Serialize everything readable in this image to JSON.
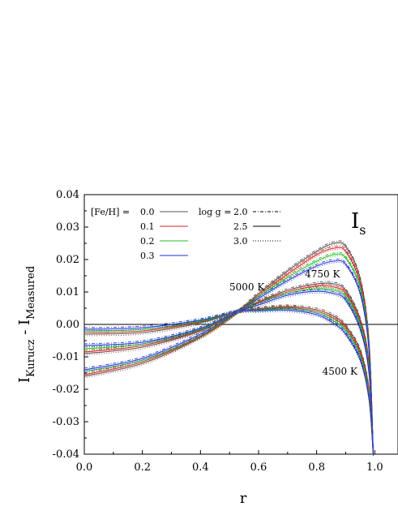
{
  "chart_data": {
    "type": "line",
    "title": "",
    "panel_label": "I",
    "panel_label_sub": "s",
    "xlabel": "r",
    "ylabel_main": "I",
    "ylabel_sub1": "Kurucz",
    "ylabel_mid": " - I",
    "ylabel_sub2": "Measured",
    "xlim": [
      0.0,
      1.08
    ],
    "ylim": [
      -0.04,
      0.04
    ],
    "x_ticks": [
      0.0,
      0.2,
      0.4,
      0.6,
      0.8,
      1.0
    ],
    "x_tick_labels": [
      "0.0",
      "0.2",
      "0.4",
      "0.6",
      "0.8",
      "1.0"
    ],
    "y_ticks": [
      -0.04,
      -0.03,
      -0.02,
      -0.01,
      0.0,
      0.01,
      0.02,
      0.03,
      0.04
    ],
    "y_tick_labels": [
      "-0.04",
      "-0.03",
      "-0.02",
      "-0.01",
      "0.00",
      "0.01",
      "0.02",
      "0.03",
      "0.04"
    ],
    "zero_line": true,
    "legend_placement": "top-left",
    "legend_feh": {
      "heading": "[Fe/H] =",
      "entries": [
        {
          "label": "0.0",
          "color": "#555555"
        },
        {
          "label": "0.1",
          "color": "#e02020"
        },
        {
          "label": "0.2",
          "color": "#20c020"
        },
        {
          "label": "0.3",
          "color": "#2030e0"
        }
      ]
    },
    "legend_logg": {
      "heading": "log g =",
      "entries": [
        {
          "label": "2.0",
          "dash": "4,2,1,2"
        },
        {
          "label": "2.5",
          "dash": ""
        },
        {
          "label": "3.0",
          "dash": "1,2"
        }
      ]
    },
    "annotations": [
      {
        "text": "5000 K",
        "x": 0.56,
        "y": 0.0105
      },
      {
        "text": "4750 K",
        "x": 0.82,
        "y": 0.0145
      },
      {
        "text": "4500 K",
        "x": 0.88,
        "y": -0.0155
      }
    ],
    "bundles": [
      {
        "temperature": "5000 K",
        "series": [
          {
            "x": [
              0.0,
              0.2,
              0.4,
              0.53,
              0.6,
              0.7,
              0.8,
              0.86,
              0.9,
              0.95,
              0.98,
              0.995
            ],
            "y": [
              -0.016,
              -0.012,
              -0.004,
              0.004,
              0.0095,
              0.0165,
              0.0225,
              0.025,
              0.024,
              0.014,
              -0.005,
              -0.04
            ]
          },
          {
            "x": [
              0.0,
              0.2,
              0.4,
              0.53,
              0.6,
              0.7,
              0.8,
              0.86,
              0.9,
              0.95,
              0.98,
              0.995
            ],
            "y": [
              -0.0155,
              -0.0115,
              -0.0038,
              0.004,
              0.009,
              0.0155,
              0.0215,
              0.0235,
              0.0225,
              0.0125,
              -0.006,
              -0.04
            ]
          },
          {
            "x": [
              0.0,
              0.2,
              0.4,
              0.53,
              0.6,
              0.7,
              0.8,
              0.86,
              0.9,
              0.95,
              0.98,
              0.995
            ],
            "y": [
              -0.0145,
              -0.011,
              -0.0035,
              0.004,
              0.0085,
              0.0145,
              0.0195,
              0.0215,
              0.0205,
              0.011,
              -0.007,
              -0.04
            ]
          },
          {
            "x": [
              0.0,
              0.2,
              0.4,
              0.53,
              0.6,
              0.7,
              0.8,
              0.86,
              0.9,
              0.95,
              0.98,
              0.995
            ],
            "y": [
              -0.014,
              -0.0105,
              -0.003,
              0.004,
              0.008,
              0.0135,
              0.018,
              0.0195,
              0.0185,
              0.0095,
              -0.008,
              -0.04
            ]
          }
        ]
      },
      {
        "temperature": "4750 K",
        "series": [
          {
            "x": [
              0.0,
              0.2,
              0.4,
              0.53,
              0.6,
              0.7,
              0.8,
              0.86,
              0.9,
              0.95,
              0.98,
              0.995
            ],
            "y": [
              -0.009,
              -0.007,
              -0.002,
              0.004,
              0.007,
              0.0105,
              0.0125,
              0.0125,
              0.0105,
              0.0015,
              -0.012,
              -0.04
            ]
          },
          {
            "x": [
              0.0,
              0.2,
              0.4,
              0.53,
              0.6,
              0.7,
              0.8,
              0.86,
              0.9,
              0.95,
              0.98,
              0.995
            ],
            "y": [
              -0.0085,
              -0.0065,
              -0.0018,
              0.004,
              0.0068,
              0.01,
              0.0118,
              0.0115,
              0.0095,
              0.0005,
              -0.013,
              -0.04
            ]
          },
          {
            "x": [
              0.0,
              0.2,
              0.4,
              0.53,
              0.6,
              0.7,
              0.8,
              0.86,
              0.9,
              0.95,
              0.98,
              0.995
            ],
            "y": [
              -0.0075,
              -0.006,
              -0.0015,
              0.004,
              0.0065,
              0.0095,
              0.011,
              0.0105,
              0.0085,
              -0.0005,
              -0.014,
              -0.04
            ]
          },
          {
            "x": [
              0.0,
              0.2,
              0.4,
              0.53,
              0.6,
              0.7,
              0.8,
              0.86,
              0.9,
              0.95,
              0.98,
              0.995
            ],
            "y": [
              -0.0065,
              -0.0055,
              -0.0012,
              0.004,
              0.006,
              0.009,
              0.0102,
              0.0095,
              0.0075,
              -0.0015,
              -0.015,
              -0.04
            ]
          }
        ]
      },
      {
        "temperature": "4500 K",
        "series": [
          {
            "x": [
              0.0,
              0.2,
              0.4,
              0.53,
              0.6,
              0.7,
              0.8,
              0.86,
              0.9,
              0.95,
              0.98,
              0.995
            ],
            "y": [
              -0.003,
              -0.0025,
              0.0005,
              0.004,
              0.0048,
              0.0055,
              0.0045,
              0.0025,
              -0.0005,
              -0.008,
              -0.02,
              -0.04
            ]
          },
          {
            "x": [
              0.0,
              0.2,
              0.4,
              0.53,
              0.6,
              0.7,
              0.8,
              0.86,
              0.9,
              0.95,
              0.98,
              0.995
            ],
            "y": [
              -0.0025,
              -0.002,
              0.0008,
              0.004,
              0.0046,
              0.0052,
              0.004,
              0.0018,
              -0.0012,
              -0.009,
              -0.021,
              -0.04
            ]
          },
          {
            "x": [
              0.0,
              0.2,
              0.4,
              0.53,
              0.6,
              0.7,
              0.8,
              0.86,
              0.9,
              0.95,
              0.98,
              0.995
            ],
            "y": [
              -0.002,
              -0.0015,
              0.001,
              0.004,
              0.0044,
              0.0048,
              0.0035,
              0.001,
              -0.002,
              -0.01,
              -0.022,
              -0.04
            ]
          },
          {
            "x": [
              0.0,
              0.2,
              0.4,
              0.53,
              0.6,
              0.7,
              0.8,
              0.86,
              0.9,
              0.95,
              0.98,
              0.995
            ],
            "y": [
              -0.0015,
              -0.001,
              0.0013,
              0.004,
              0.0042,
              0.0044,
              0.003,
              0.0002,
              -0.003,
              -0.011,
              -0.023,
              -0.04
            ]
          }
        ]
      }
    ]
  }
}
